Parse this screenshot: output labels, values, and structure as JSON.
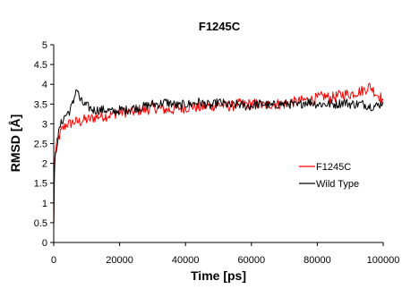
{
  "chart_data": {
    "type": "line",
    "title": "F1245C",
    "xlabel": "Time [ps]",
    "ylabel": "RMSD [Å]",
    "xlim": [
      0,
      100000
    ],
    "ylim": [
      0,
      5
    ],
    "x_ticks": [
      0,
      20000,
      40000,
      60000,
      80000,
      100000
    ],
    "y_ticks": [
      0,
      0.5,
      1,
      1.5,
      2,
      2.5,
      3,
      3.5,
      4,
      4.5,
      5
    ],
    "grid": false,
    "legend": "right",
    "series": [
      {
        "name": "F1245C",
        "color": "#ff0000",
        "x": [
          0,
          200,
          500,
          1000,
          1500,
          2000,
          2500,
          3000,
          3500,
          4000,
          5000,
          6000,
          7000,
          8000,
          9000,
          10000,
          12000,
          14000,
          16000,
          18000,
          20000,
          22000,
          24000,
          26000,
          28000,
          30000,
          32000,
          34000,
          36000,
          38000,
          40000,
          42000,
          44000,
          46000,
          48000,
          50000,
          52000,
          54000,
          56000,
          58000,
          60000,
          62000,
          64000,
          66000,
          68000,
          70000,
          72000,
          74000,
          76000,
          78000,
          80000,
          82000,
          84000,
          86000,
          88000,
          90000,
          92000,
          94000,
          95000,
          96000,
          97000,
          98000,
          99000,
          100000
        ],
        "y": [
          0.3,
          1.9,
          2.3,
          2.5,
          2.65,
          2.75,
          2.85,
          2.9,
          2.95,
          3.0,
          3.0,
          3.05,
          3.05,
          3.05,
          3.1,
          3.1,
          3.15,
          3.2,
          3.2,
          3.25,
          3.3,
          3.3,
          3.3,
          3.35,
          3.35,
          3.4,
          3.4,
          3.35,
          3.35,
          3.4,
          3.4,
          3.45,
          3.4,
          3.45,
          3.45,
          3.5,
          3.45,
          3.45,
          3.5,
          3.5,
          3.5,
          3.5,
          3.45,
          3.5,
          3.5,
          3.5,
          3.55,
          3.55,
          3.6,
          3.6,
          3.65,
          3.7,
          3.65,
          3.7,
          3.75,
          3.75,
          3.8,
          3.85,
          3.9,
          3.95,
          3.85,
          3.75,
          3.7,
          3.6
        ]
      },
      {
        "name": "Wild Type",
        "color": "#000000",
        "x": [
          0,
          200,
          500,
          1000,
          1500,
          2000,
          2500,
          3000,
          3500,
          4000,
          5000,
          6000,
          6500,
          7000,
          7500,
          8000,
          9000,
          10000,
          12000,
          14000,
          16000,
          18000,
          20000,
          22000,
          24000,
          26000,
          28000,
          30000,
          32000,
          34000,
          36000,
          38000,
          40000,
          42000,
          44000,
          46000,
          48000,
          50000,
          52000,
          54000,
          56000,
          58000,
          60000,
          62000,
          64000,
          66000,
          68000,
          70000,
          72000,
          74000,
          76000,
          78000,
          80000,
          82000,
          84000,
          86000,
          88000,
          90000,
          92000,
          94000,
          96000,
          98000,
          100000
        ],
        "y": [
          0.3,
          1.7,
          2.2,
          2.5,
          2.75,
          2.95,
          3.05,
          3.15,
          3.2,
          3.25,
          3.35,
          3.55,
          3.8,
          3.9,
          3.75,
          3.6,
          3.5,
          3.45,
          3.35,
          3.35,
          3.35,
          3.3,
          3.35,
          3.35,
          3.4,
          3.4,
          3.45,
          3.5,
          3.5,
          3.55,
          3.5,
          3.45,
          3.5,
          3.5,
          3.55,
          3.5,
          3.45,
          3.55,
          3.5,
          3.45,
          3.5,
          3.45,
          3.45,
          3.5,
          3.5,
          3.45,
          3.5,
          3.5,
          3.5,
          3.45,
          3.55,
          3.55,
          3.5,
          3.5,
          3.5,
          3.5,
          3.55,
          3.5,
          3.5,
          3.5,
          3.45,
          3.45,
          3.55
        ]
      }
    ]
  }
}
